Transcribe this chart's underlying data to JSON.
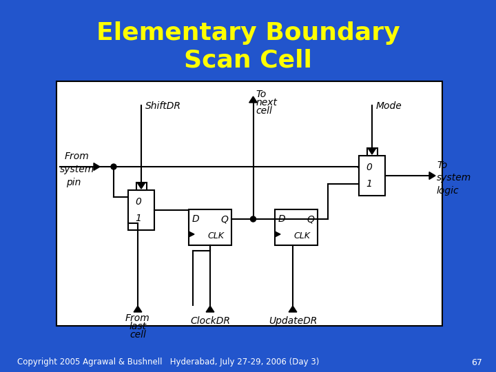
{
  "title_line1": "Elementary Boundary",
  "title_line2": "Scan Cell",
  "title_color": "#FFFF00",
  "bg_color": "#2255CC",
  "diagram_bg": "#FFFFFF",
  "diagram_fg": "#000000",
  "copyright_text": "Copyright 2005 Agrawal & Bushnell   Hyderabad, July 27-29, 2006 (Day 3)",
  "page_num": "67"
}
